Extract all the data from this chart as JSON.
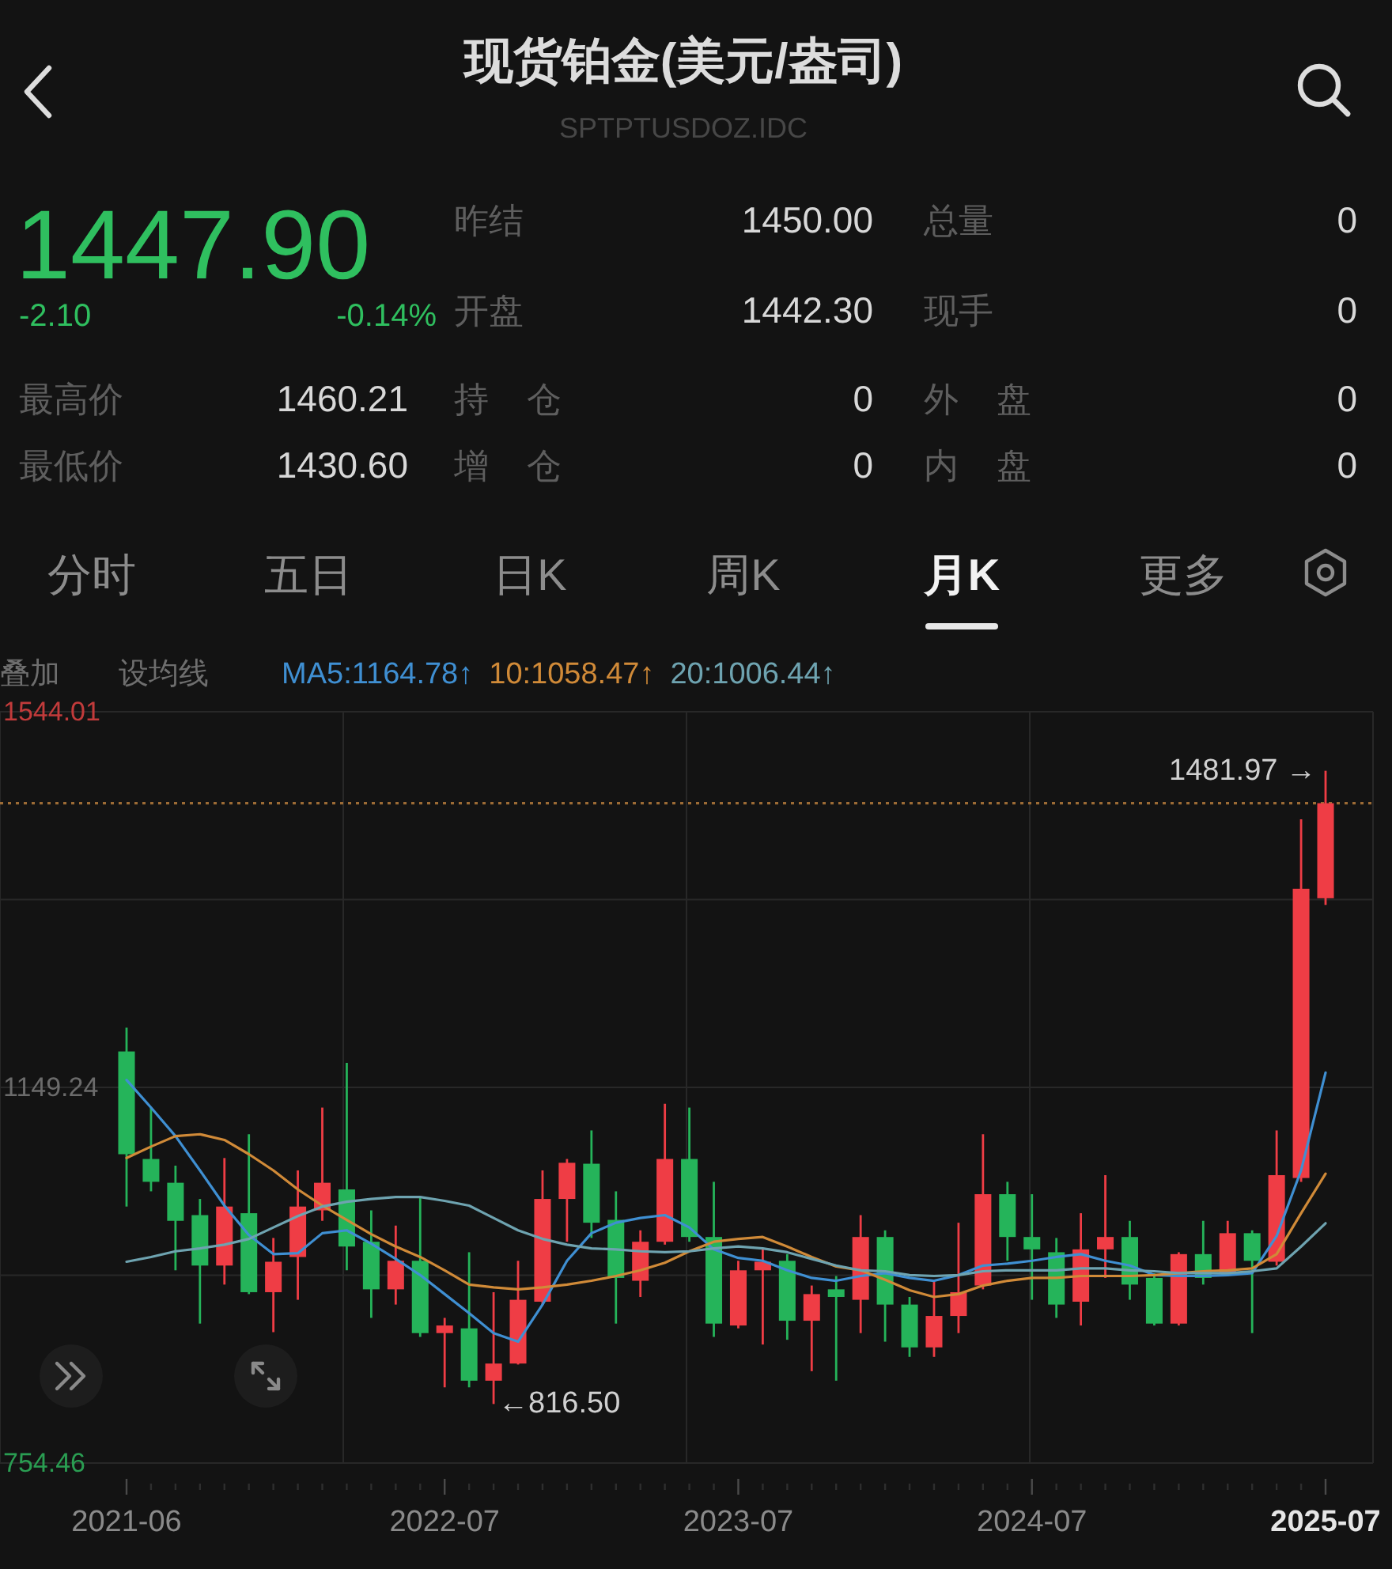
{
  "chart_data": {
    "type": "candlestick",
    "title": "现货铂金(美元/盎司)",
    "subtitle": "SPTPTUSDOZ.IDC",
    "categories": [
      "2021-06",
      null,
      null,
      null,
      null,
      null,
      null,
      null,
      null,
      null,
      null,
      null,
      null,
      "2022-07",
      null,
      null,
      null,
      null,
      null,
      null,
      null,
      null,
      null,
      null,
      null,
      "2023-07",
      null,
      null,
      null,
      null,
      null,
      null,
      null,
      null,
      null,
      null,
      null,
      "2024-07",
      null,
      null,
      null,
      null,
      null,
      null,
      null,
      null,
      null,
      null,
      null,
      "2025-07"
    ],
    "ohlc": [
      [
        1187,
        1212,
        1024,
        1079
      ],
      [
        1074,
        1128,
        1040,
        1050
      ],
      [
        1049,
        1067,
        957,
        1009
      ],
      [
        1015,
        1032,
        901,
        962
      ],
      [
        962,
        1075,
        942,
        1024
      ],
      [
        1017,
        1100,
        932,
        934
      ],
      [
        934,
        991,
        892,
        966
      ],
      [
        971,
        1062,
        926,
        1024
      ],
      [
        1020,
        1128,
        1009,
        1049
      ],
      [
        1042,
        1175,
        957,
        982
      ],
      [
        987,
        1020,
        907,
        937
      ],
      [
        937,
        1004,
        921,
        967
      ],
      [
        967,
        1034,
        887,
        891
      ],
      [
        891,
        907,
        834,
        899
      ],
      [
        896,
        976,
        834,
        841
      ],
      [
        841,
        934,
        816.5,
        859
      ],
      [
        859,
        967,
        858,
        926
      ],
      [
        924,
        1062,
        921,
        1032
      ],
      [
        1032,
        1074,
        987,
        1070
      ],
      [
        1069,
        1104,
        991,
        1007
      ],
      [
        1010,
        1040,
        901,
        949
      ],
      [
        946,
        999,
        929,
        987
      ],
      [
        987,
        1132,
        984,
        1074
      ],
      [
        1074,
        1128,
        987,
        992
      ],
      [
        992,
        1050,
        887,
        901
      ],
      [
        899,
        967,
        896,
        957
      ],
      [
        957,
        979,
        879,
        966
      ],
      [
        967,
        974,
        884,
        904
      ],
      [
        904,
        941,
        851,
        932
      ],
      [
        937,
        951,
        841,
        929
      ],
      [
        926,
        1015,
        891,
        992
      ],
      [
        992,
        999,
        882,
        921
      ],
      [
        921,
        929,
        866,
        876
      ],
      [
        876,
        946,
        866,
        909
      ],
      [
        909,
        1007,
        891,
        934
      ],
      [
        941,
        1100,
        937,
        1037
      ],
      [
        1037,
        1050,
        967,
        992
      ],
      [
        992,
        1037,
        926,
        979
      ],
      [
        976,
        991,
        907,
        921
      ],
      [
        924,
        1017,
        899,
        979
      ],
      [
        979,
        1057,
        949,
        992
      ],
      [
        992,
        1009,
        926,
        942
      ],
      [
        949,
        954,
        899,
        901
      ],
      [
        901,
        976,
        899,
        974
      ],
      [
        974,
        1009,
        942,
        949
      ],
      [
        954,
        1009,
        951,
        996
      ],
      [
        996,
        999,
        891,
        967
      ],
      [
        966,
        1104,
        962,
        1057
      ],
      [
        1054,
        1431,
        1050,
        1358
      ],
      [
        1348,
        1481.97,
        1341,
        1447.9
      ]
    ],
    "colors": [
      "#25b45a",
      "#25b45a",
      "#25b45a",
      "#25b45a",
      "#ef3d45",
      "#25b45a",
      "#ef3d45",
      "#ef3d45",
      "#ef3d45",
      "#25b45a",
      "#25b45a",
      "#ef3d45",
      "#25b45a",
      "#ef3d45",
      "#25b45a",
      "#ef3d45",
      "#ef3d45",
      "#ef3d45",
      "#ef3d45",
      "#25b45a",
      "#25b45a",
      "#ef3d45",
      "#ef3d45",
      "#25b45a",
      "#25b45a",
      "#ef3d45",
      "#ef3d45",
      "#25b45a",
      "#ef3d45",
      "#25b45a",
      "#ef3d45",
      "#25b45a",
      "#25b45a",
      "#ef3d45",
      "#ef3d45",
      "#ef3d45",
      "#25b45a",
      "#25b45a",
      "#25b45a",
      "#ef3d45",
      "#ef3d45",
      "#25b45a",
      "#25b45a",
      "#ef3d45",
      "#25b45a",
      "#ef3d45",
      "#25b45a",
      "#ef3d45",
      "#ef3d45",
      "#ef3d45"
    ],
    "series": [
      {
        "type": "line",
        "name": "MA5:1164.78↑",
        "color": "#3f8fd2",
        "values": [
          1157,
          1128,
          1098,
          1062,
          1025,
          994,
          974,
          975,
          996,
          999,
          985,
          969,
          952,
          932,
          912,
          891,
          882,
          921,
          967,
          996,
          1007,
          1012,
          1015,
          1002,
          979,
          970,
          967,
          957,
          949,
          946,
          951,
          954,
          949,
          946,
          952,
          962,
          964,
          967,
          971,
          974,
          967,
          962,
          952,
          951,
          951,
          952,
          954,
          993,
          1062,
          1164.78
        ]
      },
      {
        "type": "line",
        "name": "10:1058.47↑",
        "color": "#d08a38",
        "values": [
          1075,
          1087,
          1098,
          1100,
          1094,
          1079,
          1062,
          1042,
          1025,
          1010,
          995,
          982,
          971,
          957,
          942,
          939,
          937,
          939,
          942,
          946,
          951,
          957,
          965,
          977,
          987,
          990,
          992,
          982,
          971,
          961,
          957,
          947,
          936,
          929,
          932,
          941,
          946,
          949,
          949,
          951,
          951,
          951,
          952,
          954,
          956,
          957,
          959,
          974,
          1017,
          1058.47
        ]
      },
      {
        "type": "line",
        "name": "20:1006.44↑",
        "color": "#6ea3b0",
        "values": [
          966,
          971,
          977,
          980,
          984,
          990,
          1002,
          1014,
          1024,
          1029,
          1032,
          1034,
          1034,
          1030,
          1025,
          1012,
          999,
          990,
          984,
          980,
          979,
          977,
          976,
          977,
          980,
          982,
          980,
          976,
          969,
          962,
          957,
          956,
          952,
          951,
          952,
          956,
          957,
          957,
          957,
          959,
          959,
          957,
          956,
          954,
          954,
          954,
          956,
          959,
          982,
          1006.44
        ]
      }
    ],
    "ylim": [
      754.46,
      1544.01
    ],
    "yticks": [
      1544.01,
      {
        "value": 1346.63,
        "label": null
      },
      1149.24,
      {
        "value": 951.85,
        "label": null
      },
      754.46
    ],
    "grid": true,
    "legend": "top",
    "ref_lines": [
      {
        "axis": "y",
        "value": 1447.9,
        "color": "#9c6b35",
        "line_style": "dotted"
      }
    ],
    "annotations": [
      "1447.90",
      "-2.10",
      "-0.14%",
      "昨结",
      "1450.00",
      "总量",
      "0",
      "开盘",
      "1442.30",
      "现手",
      "0",
      "最高价",
      "1460.21",
      "持仓",
      "0",
      "外盘",
      "0",
      "最低价",
      "1430.60",
      "增仓",
      "0",
      "内盘",
      "0",
      "分时",
      "五日",
      "日K",
      "周K",
      "月K",
      "更多",
      "叠加",
      "设均线",
      {
        "text": "1481.97 →",
        "x": "2025-07",
        "y": 1481.97
      },
      "←816.50"
    ]
  }
}
